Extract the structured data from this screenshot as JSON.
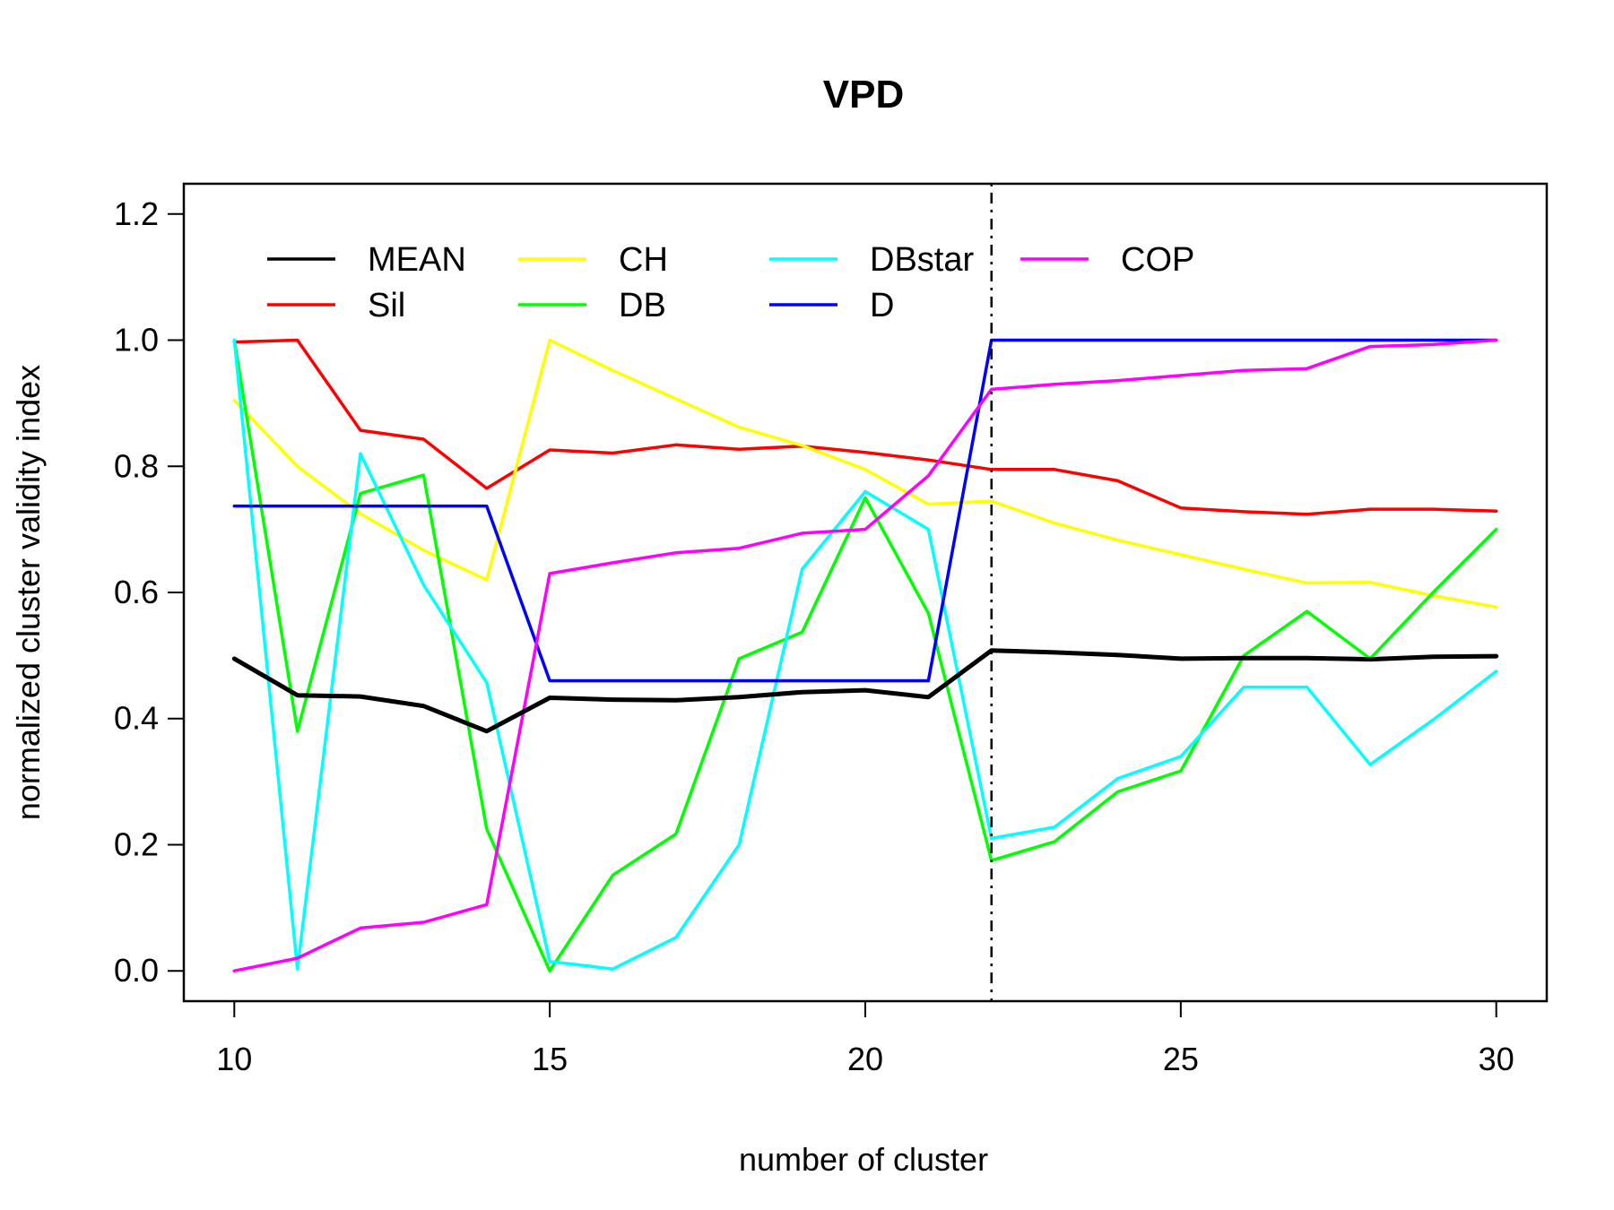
{
  "chart_data": {
    "type": "line",
    "title": "VPD",
    "xlabel": "number of cluster",
    "ylabel": "normalized cluster validity index",
    "xlim": [
      9.2,
      30.8
    ],
    "ylim": [
      -0.048,
      1.248
    ],
    "x_ticks": [
      10,
      15,
      20,
      25,
      30
    ],
    "y_ticks": [
      0.0,
      0.2,
      0.4,
      0.6,
      0.8,
      1.0,
      1.2
    ],
    "y_tick_labels": [
      "0.0",
      "0.2",
      "0.4",
      "0.6",
      "0.8",
      "1.0",
      "1.2"
    ],
    "vline_x": 22,
    "legend_position": "top-left",
    "x": [
      10,
      11,
      12,
      13,
      14,
      15,
      16,
      17,
      18,
      19,
      20,
      21,
      22,
      23,
      24,
      25,
      26,
      27,
      28,
      29,
      30
    ],
    "series": [
      {
        "name": "MEAN",
        "color": "#000000",
        "width": 5,
        "values": [
          0.495,
          0.437,
          0.435,
          0.42,
          0.38,
          0.433,
          0.43,
          0.429,
          0.434,
          0.442,
          0.445,
          0.434,
          0.508,
          0.505,
          0.501,
          0.495,
          0.496,
          0.496,
          0.494,
          0.498,
          0.499
        ]
      },
      {
        "name": "Sil",
        "color": "#ff0000",
        "width": 3.5,
        "values": [
          0.997,
          1.0,
          0.857,
          0.843,
          0.765,
          0.826,
          0.821,
          0.834,
          0.827,
          0.832,
          0.822,
          0.81,
          0.795,
          0.795,
          0.777,
          0.734,
          0.728,
          0.724,
          0.732,
          0.732,
          0.729
        ]
      },
      {
        "name": "CH",
        "color": "#ffff00",
        "width": 3.5,
        "values": [
          0.905,
          0.8,
          0.725,
          0.667,
          0.62,
          1.0,
          0.952,
          0.907,
          0.862,
          0.833,
          0.795,
          0.74,
          0.745,
          0.71,
          0.683,
          0.66,
          0.637,
          0.615,
          0.616,
          0.595,
          0.577
        ]
      },
      {
        "name": "DB",
        "color": "#00ff00",
        "width": 3.5,
        "values": [
          1.0,
          0.38,
          0.757,
          0.786,
          0.225,
          0.0,
          0.152,
          0.217,
          0.495,
          0.537,
          0.75,
          0.567,
          0.175,
          0.205,
          0.284,
          0.317,
          0.5,
          0.57,
          0.495,
          0.6,
          0.7
        ]
      },
      {
        "name": "DBstar",
        "color": "#00ffff",
        "width": 3.5,
        "values": [
          1.0,
          0.003,
          0.82,
          0.612,
          0.457,
          0.015,
          0.003,
          0.053,
          0.2,
          0.637,
          0.76,
          0.7,
          0.21,
          0.228,
          0.305,
          0.34,
          0.45,
          0.45,
          0.327,
          0.398,
          0.475
        ]
      },
      {
        "name": "D",
        "color": "#0000ff",
        "width": 3.5,
        "values": [
          0.737,
          0.737,
          0.737,
          0.737,
          0.737,
          0.46,
          0.46,
          0.46,
          0.46,
          0.46,
          0.46,
          0.46,
          1.0,
          1.0,
          1.0,
          1.0,
          1.0,
          1.0,
          1.0,
          1.0,
          1.0
        ]
      },
      {
        "name": "COP",
        "color": "#ff00ff",
        "width": 3.5,
        "values": [
          0.0,
          0.02,
          0.068,
          0.077,
          0.105,
          0.63,
          0.647,
          0.663,
          0.67,
          0.694,
          0.7,
          0.785,
          0.922,
          0.93,
          0.936,
          0.944,
          0.952,
          0.955,
          0.99,
          0.993,
          1.0
        ]
      }
    ],
    "legend_rows": [
      [
        "MEAN",
        "CH",
        "DBstar",
        "COP"
      ],
      [
        "Sil",
        "DB",
        "D"
      ]
    ]
  }
}
